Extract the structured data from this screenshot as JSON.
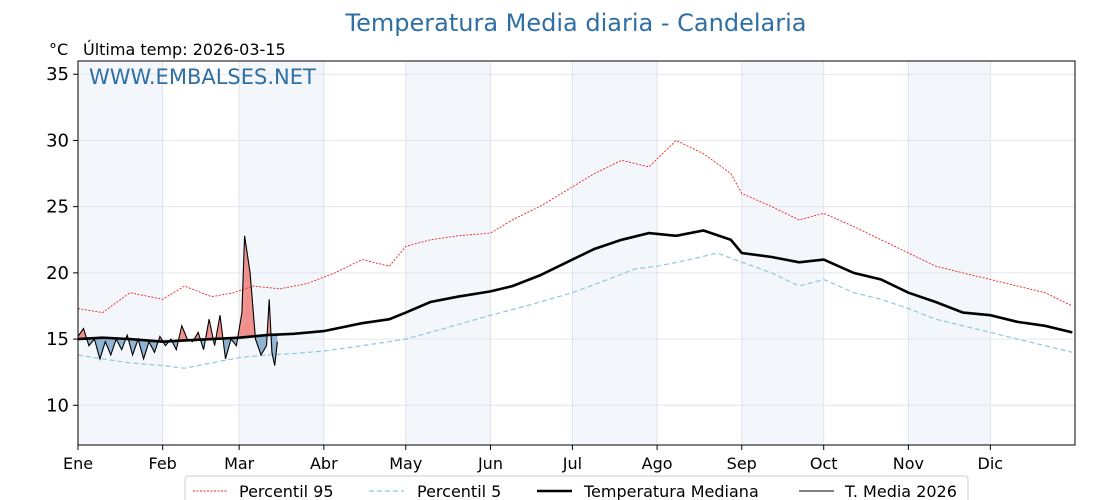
{
  "chart_data": {
    "type": "line",
    "title": "Temperatura Media diaria - Candelaria",
    "unit_label": "°C",
    "subtitle": "Última temp: 2026-03-15",
    "watermark": "WWW.EMBALSES.NET",
    "ylim": [
      7,
      36
    ],
    "yticks": [
      10,
      15,
      20,
      25,
      30,
      35
    ],
    "months": [
      "Ene",
      "Feb",
      "Mar",
      "Abr",
      "May",
      "Jun",
      "Jul",
      "Ago",
      "Sep",
      "Oct",
      "Nov",
      "Dic"
    ],
    "month_start_days": [
      1,
      32,
      60,
      91,
      121,
      152,
      182,
      213,
      244,
      274,
      305,
      335
    ],
    "grid": true,
    "legend_position": "bottom",
    "series": [
      {
        "name": "Percentil 95",
        "color": "#e8231c",
        "style": "dotted",
        "points": [
          [
            1,
            17.3
          ],
          [
            10,
            17.0
          ],
          [
            20,
            18.5
          ],
          [
            32,
            18.0
          ],
          [
            40,
            19.0
          ],
          [
            50,
            18.2
          ],
          [
            58,
            18.5
          ],
          [
            65,
            19.0
          ],
          [
            75,
            18.8
          ],
          [
            85,
            19.2
          ],
          [
            95,
            20.0
          ],
          [
            105,
            21.0
          ],
          [
            115,
            20.5
          ],
          [
            121,
            22.0
          ],
          [
            130,
            22.5
          ],
          [
            140,
            22.8
          ],
          [
            152,
            23.0
          ],
          [
            160,
            24.0
          ],
          [
            170,
            25.0
          ],
          [
            182,
            26.5
          ],
          [
            190,
            27.5
          ],
          [
            200,
            28.5
          ],
          [
            210,
            28.0
          ],
          [
            220,
            30.0
          ],
          [
            230,
            29.0
          ],
          [
            240,
            27.5
          ],
          [
            244,
            26.0
          ],
          [
            255,
            25.0
          ],
          [
            265,
            24.0
          ],
          [
            274,
            24.5
          ],
          [
            285,
            23.5
          ],
          [
            295,
            22.5
          ],
          [
            305,
            21.5
          ],
          [
            315,
            20.5
          ],
          [
            325,
            20.0
          ],
          [
            335,
            19.5
          ],
          [
            345,
            19.0
          ],
          [
            355,
            18.5
          ],
          [
            365,
            17.5
          ]
        ]
      },
      {
        "name": "Percentil 5",
        "color": "#8fc8dc",
        "style": "dashed",
        "points": [
          [
            1,
            13.8
          ],
          [
            10,
            13.5
          ],
          [
            20,
            13.2
          ],
          [
            32,
            13.0
          ],
          [
            40,
            12.8
          ],
          [
            50,
            13.2
          ],
          [
            60,
            13.6
          ],
          [
            70,
            13.8
          ],
          [
            80,
            13.9
          ],
          [
            91,
            14.1
          ],
          [
            105,
            14.5
          ],
          [
            121,
            15.0
          ],
          [
            135,
            15.8
          ],
          [
            152,
            16.8
          ],
          [
            165,
            17.5
          ],
          [
            182,
            18.5
          ],
          [
            195,
            19.5
          ],
          [
            205,
            20.3
          ],
          [
            213,
            20.5
          ],
          [
            225,
            21.0
          ],
          [
            235,
            21.5
          ],
          [
            244,
            20.8
          ],
          [
            255,
            20.0
          ],
          [
            265,
            19.0
          ],
          [
            274,
            19.5
          ],
          [
            285,
            18.5
          ],
          [
            295,
            18.0
          ],
          [
            305,
            17.3
          ],
          [
            315,
            16.5
          ],
          [
            325,
            16.0
          ],
          [
            335,
            15.5
          ],
          [
            345,
            15.0
          ],
          [
            355,
            14.5
          ],
          [
            365,
            14.0
          ]
        ]
      },
      {
        "name": "Temperatura Mediana",
        "color": "#000000",
        "style": "solid",
        "points": [
          [
            1,
            15.0
          ],
          [
            10,
            15.1
          ],
          [
            20,
            15.0
          ],
          [
            32,
            14.8
          ],
          [
            40,
            14.9
          ],
          [
            50,
            15.0
          ],
          [
            60,
            15.1
          ],
          [
            70,
            15.3
          ],
          [
            80,
            15.4
          ],
          [
            91,
            15.6
          ],
          [
            105,
            16.2
          ],
          [
            115,
            16.5
          ],
          [
            121,
            17.0
          ],
          [
            130,
            17.8
          ],
          [
            140,
            18.2
          ],
          [
            152,
            18.6
          ],
          [
            160,
            19.0
          ],
          [
            170,
            19.8
          ],
          [
            182,
            21.0
          ],
          [
            190,
            21.8
          ],
          [
            200,
            22.5
          ],
          [
            210,
            23.0
          ],
          [
            220,
            22.8
          ],
          [
            230,
            23.2
          ],
          [
            240,
            22.5
          ],
          [
            244,
            21.5
          ],
          [
            255,
            21.2
          ],
          [
            265,
            20.8
          ],
          [
            274,
            21.0
          ],
          [
            285,
            20.0
          ],
          [
            295,
            19.5
          ],
          [
            305,
            18.5
          ],
          [
            315,
            17.8
          ],
          [
            325,
            17.0
          ],
          [
            335,
            16.8
          ],
          [
            345,
            16.3
          ],
          [
            355,
            16.0
          ],
          [
            365,
            15.5
          ]
        ]
      },
      {
        "name": "T. Media 2026",
        "color": "#000000",
        "style": "solid-thin",
        "points": [
          [
            1,
            15.2
          ],
          [
            3,
            15.8
          ],
          [
            5,
            14.5
          ],
          [
            7,
            15.0
          ],
          [
            9,
            13.5
          ],
          [
            11,
            14.8
          ],
          [
            13,
            13.8
          ],
          [
            15,
            15.0
          ],
          [
            17,
            14.2
          ],
          [
            19,
            15.3
          ],
          [
            21,
            13.8
          ],
          [
            23,
            15.0
          ],
          [
            25,
            13.5
          ],
          [
            27,
            14.8
          ],
          [
            29,
            14.0
          ],
          [
            31,
            15.2
          ],
          [
            33,
            14.5
          ],
          [
            35,
            15.0
          ],
          [
            37,
            14.2
          ],
          [
            39,
            16.0
          ],
          [
            41,
            15.0
          ],
          [
            43,
            14.8
          ],
          [
            45,
            15.5
          ],
          [
            47,
            14.2
          ],
          [
            49,
            16.5
          ],
          [
            51,
            14.5
          ],
          [
            53,
            16.8
          ],
          [
            55,
            13.5
          ],
          [
            57,
            15.0
          ],
          [
            59,
            14.5
          ],
          [
            61,
            17.0
          ],
          [
            62,
            22.8
          ],
          [
            64,
            20.0
          ],
          [
            66,
            15.0
          ],
          [
            68,
            13.8
          ],
          [
            70,
            14.5
          ],
          [
            71,
            18.0
          ],
          [
            72,
            14.0
          ],
          [
            73,
            13.0
          ],
          [
            74,
            14.8
          ]
        ]
      }
    ]
  }
}
